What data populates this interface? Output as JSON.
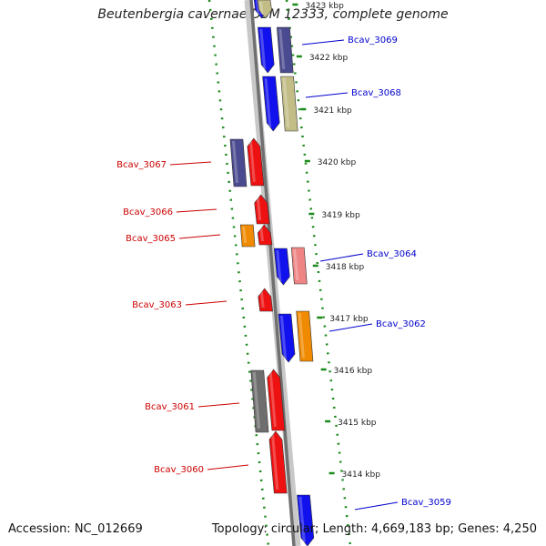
{
  "title": "Beutenbergia cavernae DSM 12333, complete genome",
  "accession": "Accession: NC_012669",
  "summary": "Topology: circular; Length: 4,669,183 bp; Genes: 4,250",
  "ticks": [
    {
      "label": "3423 kbp",
      "kbp": 3423
    },
    {
      "label": "3422 kbp",
      "kbp": 3422
    },
    {
      "label": "3421 kbp",
      "kbp": 3421
    },
    {
      "label": "3420 kbp",
      "kbp": 3420
    },
    {
      "label": "3419 kbp",
      "kbp": 3419
    },
    {
      "label": "3418 kbp",
      "kbp": 3418
    },
    {
      "label": "3417 kbp",
      "kbp": 3417
    },
    {
      "label": "3416 kbp",
      "kbp": 3416
    },
    {
      "label": "3415 kbp",
      "kbp": 3415
    },
    {
      "label": "3414 kbp",
      "kbp": 3414
    }
  ],
  "colors": {
    "blue": "#1111ee",
    "navy": "#4a4a90",
    "khaki": "#c2bd86",
    "red": "#ee1111",
    "orange": "#f08a00",
    "salmon": "#ee8484",
    "gray": "#6e6e6e",
    "green": "#1a8a1a",
    "label_red": "#cc0000",
    "label_blue": "#0000cc"
  },
  "gene_labels": [
    {
      "name": "Bcav_3069",
      "color": "label_blue"
    },
    {
      "name": "Bcav_3068",
      "color": "label_blue"
    },
    {
      "name": "Bcav_3067",
      "color": "label_red"
    },
    {
      "name": "Bcav_3066",
      "color": "label_red"
    },
    {
      "name": "Bcav_3065",
      "color": "label_red"
    },
    {
      "name": "Bcav_3064",
      "color": "label_blue"
    },
    {
      "name": "Bcav_3063",
      "color": "label_red"
    },
    {
      "name": "Bcav_3062",
      "color": "label_blue"
    },
    {
      "name": "Bcav_3061",
      "color": "label_red"
    },
    {
      "name": "Bcav_3060",
      "color": "label_red"
    },
    {
      "name": "Bcav_3059",
      "color": "label_blue"
    }
  ]
}
